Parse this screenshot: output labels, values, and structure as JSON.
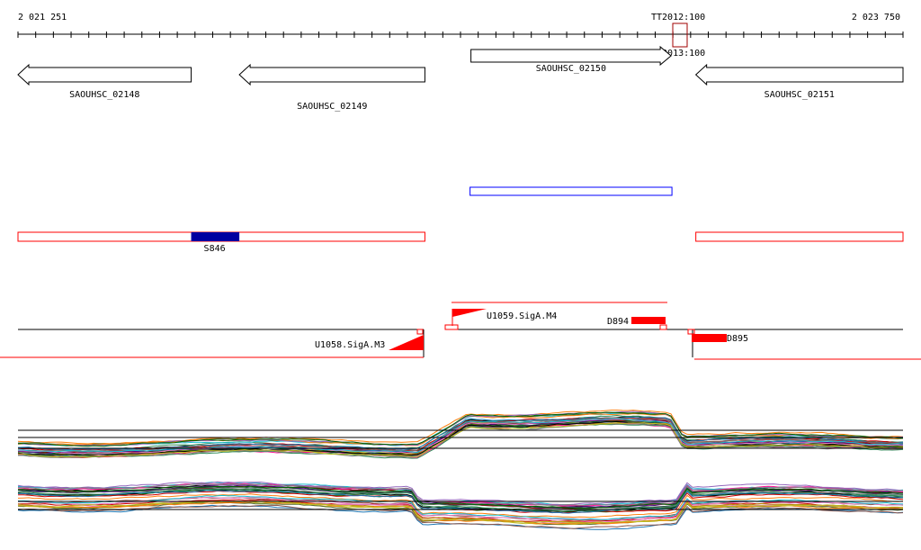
{
  "ruler": {
    "start_label": "2 021 251",
    "end_label": "2 023 750",
    "start": 2021251,
    "end": 2023750,
    "marker_label": "TT2012:100",
    "marker_label_2": "TT2013:100",
    "marker_position": 2023143
  },
  "genes": [
    {
      "name": "SAOUHSC_02148",
      "start": 2021251,
      "end": 2021740,
      "strand": "-"
    },
    {
      "name": "SAOUHSC_02149",
      "start": 2021876,
      "end": 2022400,
      "strand": "-"
    },
    {
      "name": "SAOUHSC_02150",
      "start": 2022530,
      "end": 2023095,
      "strand": "+"
    },
    {
      "name": "SAOUHSC_02151",
      "start": 2023165,
      "end": 2023750,
      "strand": "-"
    }
  ],
  "blue_box_track": [
    {
      "start": 2022530,
      "end": 2023095
    }
  ],
  "red_track": [
    {
      "start": 2021251,
      "end": 2022400
    },
    {
      "start": 2023165,
      "end": 2023750
    }
  ],
  "features": [
    {
      "name": "S846",
      "start": 2021740,
      "end": 2021876,
      "color": "#0000a0"
    }
  ],
  "promoters": [
    {
      "name": "U1058.SigA.M3",
      "position": 2022400,
      "strand": "-"
    },
    {
      "name": "U1059.SigA.M4",
      "position": 2022460,
      "strand": "+"
    }
  ],
  "terminators": [
    {
      "name": "D894",
      "start": 2022980,
      "end": 2023085
    },
    {
      "name": "D895",
      "start": 2023170,
      "end": 2023275
    }
  ],
  "colors": {
    "gene_outline": "#000000",
    "blue_box": "#0000ff",
    "red": "#ff0000",
    "feature_blue": "#0000a0",
    "marker": "#a00000"
  }
}
